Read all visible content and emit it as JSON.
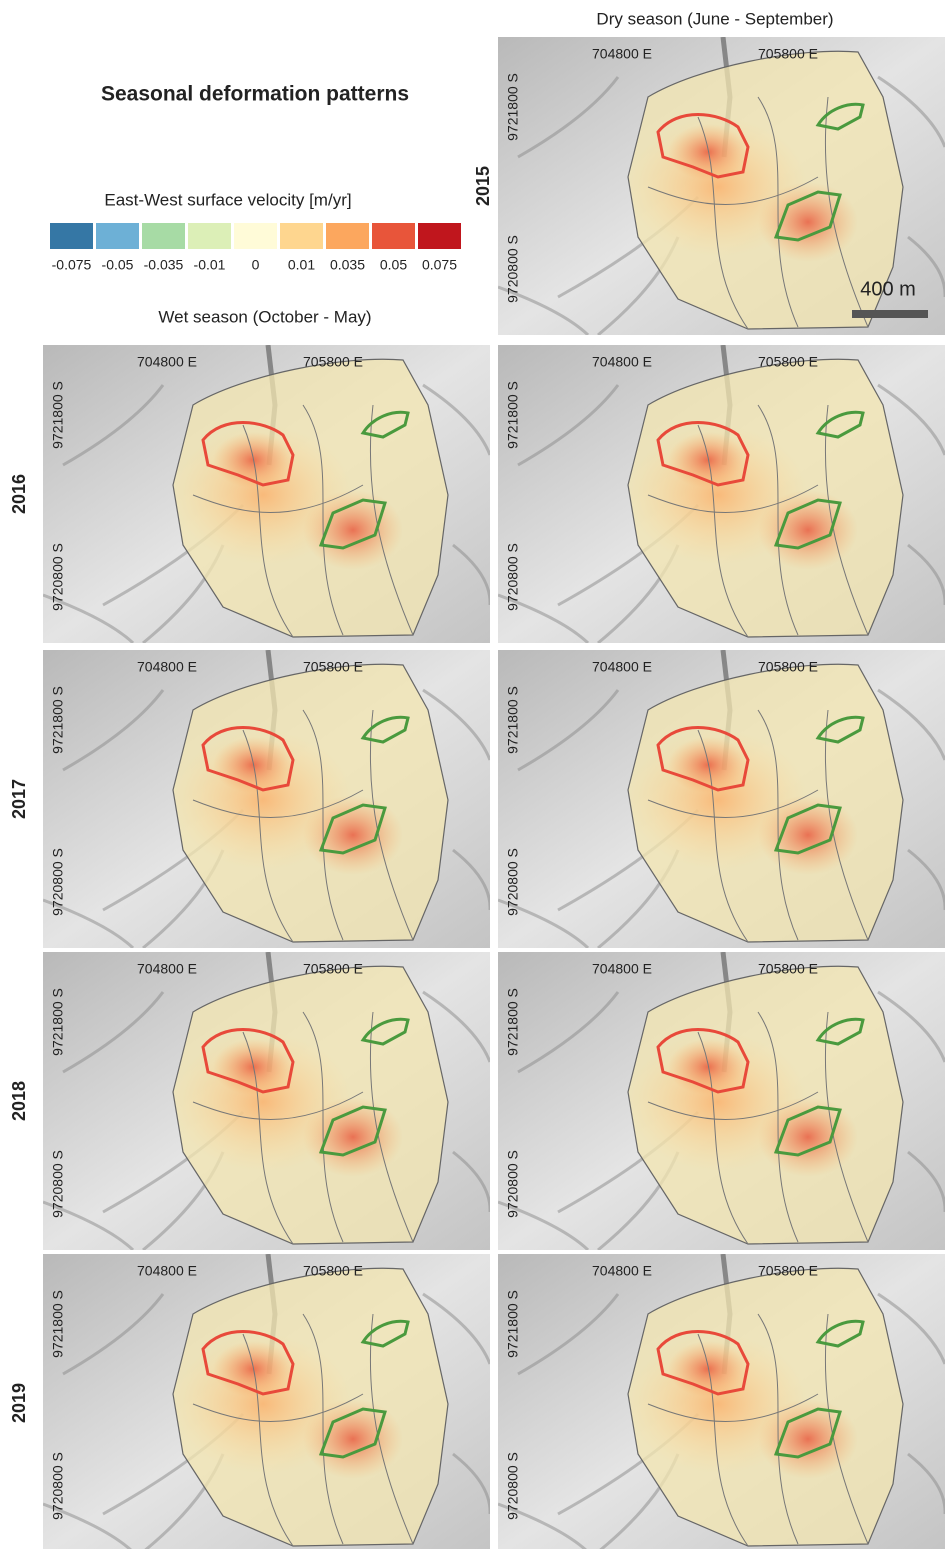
{
  "title": "Seasonal deformation patterns",
  "legend": {
    "title": "East-West surface velocity [m/yr]",
    "items": [
      {
        "label": "-0.075",
        "color": "#3577a5"
      },
      {
        "label": "-0.05",
        "color": "#6db0d6"
      },
      {
        "label": "-0.035",
        "color": "#a7dba5"
      },
      {
        "label": "-0.01",
        "color": "#dcefb7"
      },
      {
        "label": "0",
        "color": "#fffbd8"
      },
      {
        "label": "0.01",
        "color": "#fed68f"
      },
      {
        "label": "0.035",
        "color": "#fca75e"
      },
      {
        "label": "0.05",
        "color": "#e8553a"
      },
      {
        "label": "0.075",
        "color": "#c0161d"
      }
    ]
  },
  "wet_header": "Wet season (October - May)",
  "dry_header": "Dry season (June - September)",
  "rows": [
    {
      "year": "2015",
      "dry": {
        "easting": [
          "704800 E",
          "705800 E"
        ],
        "northing": [
          "9721800 S",
          "9720800 S"
        ],
        "scale_bar": "400 m"
      }
    },
    {
      "year": "2016",
      "wet": {
        "easting": [
          "704800 E",
          "705800 E"
        ],
        "northing": [
          "9721800 S",
          "9720800 S"
        ]
      },
      "dry": {
        "easting": [
          "704800 E",
          "705800 E"
        ],
        "northing": [
          "9721800 S",
          "9720800 S"
        ]
      }
    },
    {
      "year": "2017",
      "wet": {
        "easting": [
          "704800 E",
          "705800 E"
        ],
        "northing": [
          "9721800 S",
          "9720800 S"
        ]
      },
      "dry": {
        "easting": [
          "704800 E",
          "705800 E"
        ],
        "northing": [
          "9721800 S",
          "9720800 S"
        ]
      }
    },
    {
      "year": "2018",
      "wet": {
        "easting": [
          "704800 E",
          "705800 E"
        ],
        "northing": [
          "9721800 S",
          "9720800 S"
        ]
      },
      "dry": {
        "easting": [
          "704800 E",
          "705800 E"
        ],
        "northing": [
          "9721800 S",
          "9720800 S"
        ]
      }
    },
    {
      "year": "2019",
      "wet": {
        "easting": [
          "704800 E",
          "705800 E"
        ],
        "northing": [
          "9721800 S",
          "9720800 S"
        ]
      },
      "dry": {
        "easting": [
          "704800 E",
          "705800 E"
        ],
        "northing": [
          "9721800 S",
          "9720800 S"
        ]
      }
    }
  ]
}
